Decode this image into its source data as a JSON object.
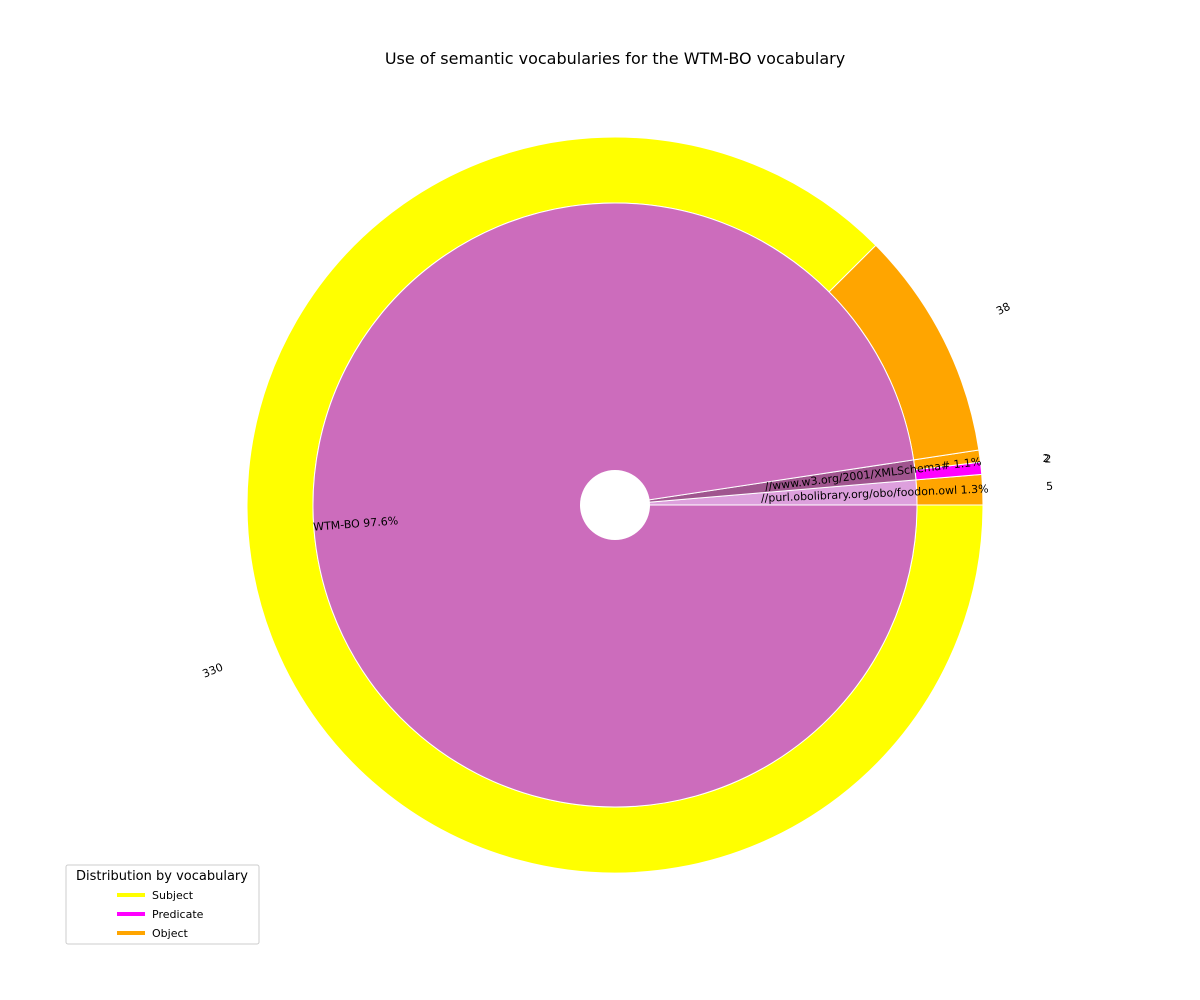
{
  "chart_data": {
    "type": "pie",
    "title": "Use of semantic vocabularies for the WTM-BO vocabulary",
    "inner_ring": {
      "slices": [
        {
          "label": "//purl.obolibrary.org/obo/foodon.owl",
          "pct_label": "1.3%",
          "value": 5,
          "color": "#dda0dd"
        },
        {
          "label": "//www.w3.org/2001/XMLSchema#",
          "pct_label": "1.1%",
          "value": 4,
          "color": "#a0558f"
        },
        {
          "label": "WTM-BO",
          "pct_label": "97.6%",
          "value": 368,
          "color": "#cc6cbc"
        }
      ]
    },
    "outer_ring": {
      "slices": [
        {
          "group": "//purl.obolibrary.org/obo/foodon.owl",
          "role": "Object",
          "value": 5,
          "label": "5",
          "color": "#ffa500"
        },
        {
          "group": "//www.w3.org/2001/XMLSchema#",
          "role": "Predicate",
          "value": 2,
          "label": "2",
          "color": "#ff00ff"
        },
        {
          "group": "//www.w3.org/2001/XMLSchema#",
          "role": "Object",
          "value": 2,
          "label": "2",
          "color": "#ffa500"
        },
        {
          "group": "WTM-BO",
          "role": "Object",
          "value": 38,
          "label": "38",
          "color": "#ffa500"
        },
        {
          "group": "WTM-BO",
          "role": "Subject",
          "value": 330,
          "label": "330",
          "color": "#ffff00"
        }
      ]
    },
    "legend": {
      "title": "Distribution by vocabulary",
      "placement": "bottom-left",
      "items": [
        {
          "label": "Subject",
          "color": "#ffff00"
        },
        {
          "label": "Predicate",
          "color": "#ff00ff"
        },
        {
          "label": "Object",
          "color": "#ffa500"
        }
      ]
    }
  }
}
